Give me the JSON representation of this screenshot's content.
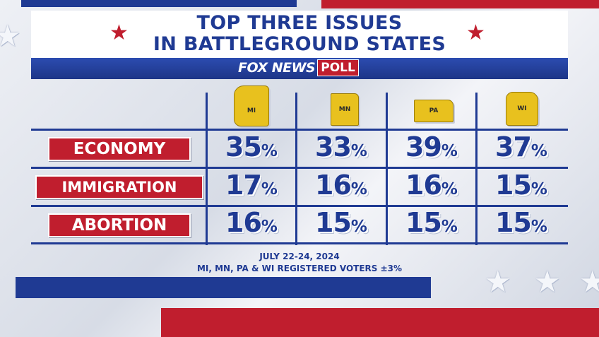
{
  "title": {
    "line1": "TOP THREE ISSUES",
    "line2": "IN BATTLEGROUND STATES"
  },
  "logo": {
    "brand": "FOX NEWS",
    "poll": "POLL"
  },
  "chart_data": {
    "type": "table",
    "columns": [
      "MI",
      "MN",
      "PA",
      "WI"
    ],
    "rows": [
      {
        "issue": "ECONOMY",
        "values": [
          35,
          33,
          39,
          37
        ]
      },
      {
        "issue": "IMMIGRATION",
        "values": [
          17,
          16,
          16,
          15
        ]
      },
      {
        "issue": "ABORTION",
        "values": [
          16,
          15,
          15,
          15
        ]
      }
    ],
    "unit": "%"
  },
  "footer": {
    "date": "JULY 22-24, 2024",
    "sample": "MI, MN, PA & WI REGISTERED VOTERS ±3%"
  },
  "colors": {
    "blue": "#1f3a93",
    "red": "#c01e2e",
    "gold": "#e8c11e"
  }
}
